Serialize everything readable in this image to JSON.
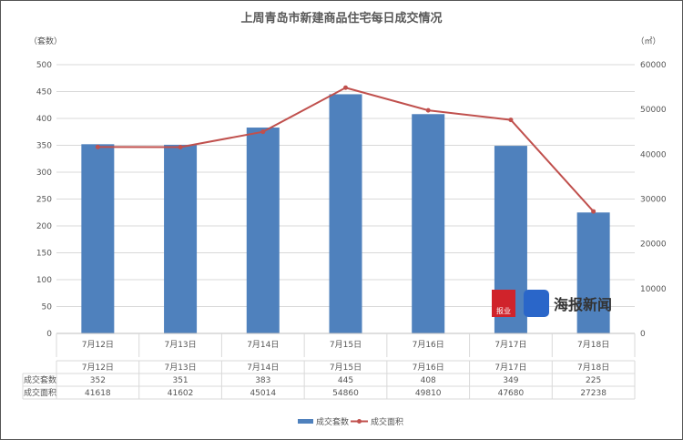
{
  "chart_data": {
    "type": "bar+line",
    "title": "上周青岛市新建商品住宅每日成交情况",
    "ylabel_left": "（套数）",
    "ylabel_right": "（㎡）",
    "categories": [
      "7月12日",
      "7月13日",
      "7月14日",
      "7月15日",
      "7月16日",
      "7月17日",
      "7月18日"
    ],
    "ylim_left": [
      0,
      500
    ],
    "yticks_left": [
      0,
      50,
      100,
      150,
      200,
      250,
      300,
      350,
      400,
      450,
      500
    ],
    "ylim_right": [
      0,
      60000
    ],
    "yticks_right": [
      0,
      10000,
      20000,
      30000,
      40000,
      50000,
      60000
    ],
    "grid": true,
    "legend_position": "bottom",
    "series": [
      {
        "name": "成交套数",
        "type": "bar",
        "axis": "left",
        "color": "#4f81bd",
        "values": [
          352,
          351,
          383,
          445,
          408,
          349,
          225
        ]
      },
      {
        "name": "成交面积",
        "type": "line",
        "axis": "right",
        "color": "#c0504d",
        "values": [
          41618,
          41602,
          45014,
          54860,
          49810,
          47680,
          27238
        ]
      }
    ]
  },
  "watermark": {
    "logo1": "大众报业",
    "logo2": "海报新闻"
  }
}
